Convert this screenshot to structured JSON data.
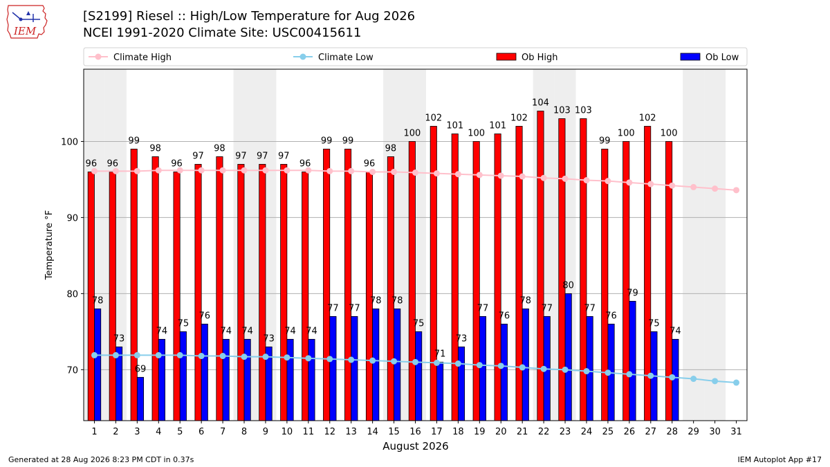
{
  "header": {
    "title_line1": "[S2199] Riesel :: High/Low Temperature for Aug 2026",
    "title_line2": "NCEI 1991-2020 Climate Site: USC00415611",
    "logo_text": "IEM"
  },
  "footer": {
    "generated": "Generated at 28 Aug 2026 8:23 PM CDT in 0.37s",
    "app": "IEM Autoplot App #17"
  },
  "colors": {
    "ob_high": "#ff0000",
    "ob_low": "#0000ff",
    "climate_high": "#ffc0cb",
    "climate_low": "#87ceeb",
    "weekend_band": "#eeeeee",
    "grid": "#b0b0b0"
  },
  "chart_data": {
    "type": "bar",
    "xlabel": "August 2026",
    "ylabel": "Temperature °F",
    "ylim": [
      63.3,
      109.5
    ],
    "yticks": [
      70,
      80,
      90,
      100
    ],
    "categories": [
      "1",
      "2",
      "3",
      "4",
      "5",
      "6",
      "7",
      "8",
      "9",
      "10",
      "11",
      "12",
      "13",
      "14",
      "15",
      "16",
      "17",
      "18",
      "19",
      "20",
      "21",
      "22",
      "23",
      "24",
      "25",
      "26",
      "27",
      "28",
      "29",
      "30",
      "31"
    ],
    "weekend_days": [
      1,
      2,
      8,
      9,
      15,
      16,
      22,
      23,
      29,
      30
    ],
    "legend_position": "top",
    "grid": "horizontal",
    "series": [
      {
        "name": "Climate High",
        "kind": "line",
        "values": [
          96.1,
          96.1,
          96.1,
          96.2,
          96.2,
          96.2,
          96.2,
          96.2,
          96.2,
          96.2,
          96.2,
          96.1,
          96.1,
          96.0,
          96.0,
          95.9,
          95.8,
          95.7,
          95.6,
          95.5,
          95.4,
          95.2,
          95.1,
          94.9,
          94.8,
          94.6,
          94.4,
          94.2,
          94.0,
          93.8,
          93.6
        ]
      },
      {
        "name": "Climate Low",
        "kind": "line",
        "values": [
          71.9,
          71.9,
          71.9,
          71.9,
          71.9,
          71.8,
          71.8,
          71.7,
          71.7,
          71.6,
          71.5,
          71.4,
          71.3,
          71.2,
          71.1,
          71.0,
          70.9,
          70.8,
          70.6,
          70.5,
          70.3,
          70.1,
          70.0,
          69.8,
          69.6,
          69.4,
          69.2,
          69.0,
          68.8,
          68.5,
          68.3
        ]
      },
      {
        "name": "Ob High",
        "kind": "bar",
        "values": [
          96,
          96,
          99,
          98,
          96,
          97,
          98,
          97,
          97,
          97,
          96,
          99,
          99,
          96,
          98,
          100,
          102,
          101,
          100,
          101,
          102,
          104,
          103,
          103,
          99,
          100,
          102,
          100,
          null,
          null,
          null
        ]
      },
      {
        "name": "Ob Low",
        "kind": "bar",
        "values": [
          78,
          73,
          69,
          74,
          75,
          76,
          74,
          74,
          73,
          74,
          74,
          77,
          77,
          78,
          78,
          75,
          71,
          73,
          77,
          76,
          78,
          77,
          80,
          77,
          76,
          79,
          75,
          74,
          null,
          null,
          null
        ]
      }
    ]
  }
}
